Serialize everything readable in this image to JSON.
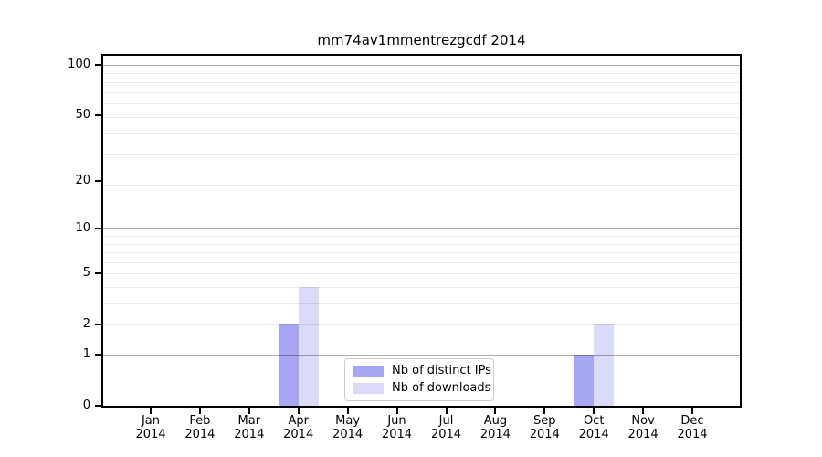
{
  "chart_data": {
    "type": "bar",
    "title": "mm74av1mmentrezgcdf 2014",
    "categories": [
      "Jan 2014",
      "Feb 2014",
      "Mar 2014",
      "Apr 2014",
      "May 2014",
      "Jun 2014",
      "Jul 2014",
      "Aug 2014",
      "Sep 2014",
      "Oct 2014",
      "Nov 2014",
      "Dec 2014"
    ],
    "x_ticks": [
      {
        "month": "Jan",
        "year": "2014"
      },
      {
        "month": "Feb",
        "year": "2014"
      },
      {
        "month": "Mar",
        "year": "2014"
      },
      {
        "month": "Apr",
        "year": "2014"
      },
      {
        "month": "May",
        "year": "2014"
      },
      {
        "month": "Jun",
        "year": "2014"
      },
      {
        "month": "Jul",
        "year": "2014"
      },
      {
        "month": "Aug",
        "year": "2014"
      },
      {
        "month": "Sep",
        "year": "2014"
      },
      {
        "month": "Oct",
        "year": "2014"
      },
      {
        "month": "Nov",
        "year": "2014"
      },
      {
        "month": "Dec",
        "year": "2014"
      }
    ],
    "series": [
      {
        "name": "Nb of distinct IPs",
        "color": "#a6a6f2",
        "values": [
          0,
          0,
          0,
          2,
          0,
          0,
          0,
          0,
          0,
          1,
          0,
          0
        ]
      },
      {
        "name": "Nb of downloads",
        "color": "#dadaf9",
        "values": [
          0,
          0,
          0,
          4,
          0,
          0,
          0,
          0,
          0,
          2,
          0,
          0
        ]
      }
    ],
    "y_ticks": [
      0,
      1,
      2,
      5,
      10,
      20,
      50,
      100
    ],
    "y_scale": "log10(1+v)",
    "ylim": [
      0,
      113
    ],
    "xlabel": "",
    "ylabel": "",
    "grid": true,
    "legend_position": "lower-center",
    "colors": {
      "major_grid": "rgba(0,0,0,0.32)",
      "minor_grid": "rgba(0,0,0,0.08)",
      "axis": "#000000",
      "background": "#ffffff"
    }
  }
}
